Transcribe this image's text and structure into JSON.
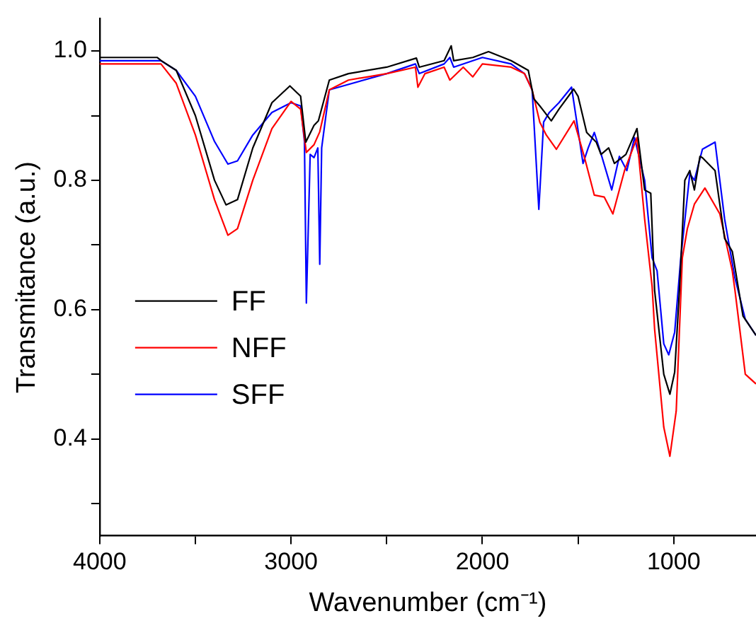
{
  "chart_data": {
    "type": "line",
    "xlabel": "Wavenumber (cm⁻¹)",
    "ylabel": "Transmitance (a.u.)",
    "xlim": [
      4000,
      570
    ],
    "xticks": [
      4000,
      {
        "value": 3500,
        "label": null
      },
      3000,
      {
        "value": 2500,
        "label": null
      },
      2000,
      {
        "value": 1500,
        "label": null
      },
      1000
    ],
    "ylim": [
      0.25,
      1.05
    ],
    "yticks": [
      {
        "value": 0.3,
        "label": null
      },
      {
        "value": 0.4,
        "label": "0.4"
      },
      {
        "value": 0.5,
        "label": null
      },
      {
        "value": 0.6,
        "label": "0.6"
      },
      {
        "value": 0.7,
        "label": null
      },
      {
        "value": 0.8,
        "label": "0.8"
      },
      {
        "value": 0.9,
        "label": null
      },
      {
        "value": 1,
        "label": "1.0"
      }
    ],
    "grid": false,
    "legend": "bottom left",
    "marker": "none",
    "line_style": "solid",
    "series": [
      {
        "name": "FF",
        "color": "#000000",
        "x": [
          4000,
          3700,
          3678,
          3600,
          3500,
          3400,
          3340,
          3280,
          3200,
          3100,
          3006,
          2950,
          2923,
          2880,
          2857,
          2800,
          2700,
          2500,
          2345,
          2330,
          2200,
          2163,
          2150,
          2050,
          1968,
          1850,
          1760,
          1731,
          1700,
          1640,
          1600,
          1523,
          1500,
          1455,
          1405,
          1380,
          1340,
          1310,
          1250,
          1192,
          1152,
          1120,
          1100,
          1052,
          1020,
          995,
          969,
          942,
          916,
          892,
          863,
          850,
          784,
          734,
          694,
          638,
          570
        ],
        "values": [
          0.99,
          0.99,
          0.985,
          0.97,
          0.9,
          0.8,
          0.762,
          0.77,
          0.85,
          0.92,
          0.946,
          0.93,
          0.859,
          0.885,
          0.892,
          0.955,
          0.965,
          0.975,
          0.989,
          0.975,
          0.985,
          1.008,
          0.985,
          0.99,
          0.999,
          0.985,
          0.97,
          0.926,
          0.915,
          0.892,
          0.91,
          0.941,
          0.93,
          0.874,
          0.859,
          0.84,
          0.85,
          0.826,
          0.84,
          0.88,
          0.785,
          0.78,
          0.63,
          0.5,
          0.469,
          0.503,
          0.636,
          0.8,
          0.815,
          0.785,
          0.837,
          0.835,
          0.815,
          0.71,
          0.69,
          0.59,
          0.56
        ]
      },
      {
        "name": "NFF",
        "color": "#ff0000",
        "x": [
          4000,
          3680,
          3600,
          3500,
          3400,
          3330,
          3280,
          3200,
          3100,
          3000,
          2950,
          2920,
          2880,
          2850,
          2800,
          2700,
          2500,
          2350,
          2337,
          2300,
          2200,
          2170,
          2100,
          2050,
          2000,
          1850,
          1780,
          1740,
          1700,
          1666,
          1613,
          1521,
          1468,
          1415,
          1363,
          1318,
          1257,
          1192,
          1152,
          1113,
          1100,
          1052,
          1020,
          987,
          955,
          929,
          892,
          837,
          759,
          694,
          680,
          626,
          570
        ],
        "values": [
          0.98,
          0.98,
          0.95,
          0.87,
          0.77,
          0.715,
          0.725,
          0.8,
          0.88,
          0.922,
          0.91,
          0.843,
          0.855,
          0.875,
          0.94,
          0.955,
          0.965,
          0.975,
          0.944,
          0.965,
          0.975,
          0.955,
          0.975,
          0.96,
          0.98,
          0.975,
          0.965,
          0.94,
          0.89,
          0.87,
          0.848,
          0.892,
          0.837,
          0.777,
          0.774,
          0.748,
          0.815,
          0.866,
          0.74,
          0.636,
          0.57,
          0.418,
          0.373,
          0.443,
          0.68,
          0.725,
          0.763,
          0.788,
          0.748,
          0.66,
          0.63,
          0.5,
          0.485
        ]
      },
      {
        "name": "SFF",
        "color": "#0000ff",
        "x": [
          4000,
          3680,
          3600,
          3500,
          3400,
          3330,
          3280,
          3200,
          3100,
          3000,
          2950,
          2930,
          2920,
          2900,
          2880,
          2860,
          2850,
          2840,
          2800,
          2500,
          2350,
          2330,
          2200,
          2170,
          2150,
          2000,
          1850,
          1780,
          1740,
          1705,
          1680,
          1650,
          1600,
          1534,
          1474,
          1447,
          1415,
          1376,
          1324,
          1284,
          1245,
          1205,
          1152,
          1113,
          1087,
          1052,
          1026,
          995,
          963,
          916,
          892,
          850,
          784,
          734,
          681,
          626,
          570
        ],
        "values": [
          0.985,
          0.985,
          0.97,
          0.93,
          0.86,
          0.825,
          0.83,
          0.87,
          0.905,
          0.92,
          0.915,
          0.86,
          0.61,
          0.84,
          0.835,
          0.85,
          0.67,
          0.85,
          0.94,
          0.965,
          0.98,
          0.965,
          0.98,
          0.99,
          0.975,
          0.99,
          0.98,
          0.965,
          0.94,
          0.755,
          0.89,
          0.905,
          0.92,
          0.944,
          0.826,
          0.85,
          0.874,
          0.837,
          0.785,
          0.837,
          0.815,
          0.866,
          0.8,
          0.68,
          0.66,
          0.547,
          0.53,
          0.565,
          0.68,
          0.81,
          0.8,
          0.848,
          0.859,
          0.74,
          0.65,
          0.585,
          0.56
        ]
      }
    ]
  }
}
